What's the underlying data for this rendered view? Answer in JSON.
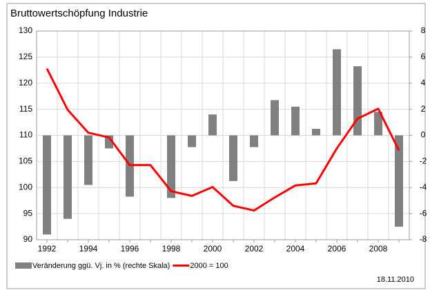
{
  "chart_data": {
    "type": "bar_line",
    "title": "Bruttowertschöpfung Industrie",
    "date": "18.11.2010",
    "categories": [
      "1992",
      null,
      "1994",
      null,
      "1996",
      null,
      "1998",
      null,
      "2000",
      null,
      "2002",
      null,
      "2004",
      null,
      "2006",
      null,
      "2008",
      null
    ],
    "series": [
      {
        "name": "Veränderung ggü. Vj. in % (rechte Skala)",
        "type": "bar",
        "axis": "y2",
        "color": "#808080",
        "values": [
          -7.6,
          -6.4,
          -3.8,
          -1.0,
          -4.7,
          0,
          -4.8,
          -0.9,
          1.6,
          -3.5,
          -0.9,
          2.7,
          2.2,
          0.5,
          6.6,
          5.3,
          1.8,
          -7.0
        ]
      },
      {
        "name": "2000 = 100",
        "type": "line",
        "axis": "y",
        "color": "#ff0000",
        "values": [
          122.8,
          114.9,
          110.5,
          109.6,
          104.3,
          104.3,
          99.3,
          98.4,
          100.1,
          96.5,
          95.6,
          98.1,
          100.4,
          100.8,
          107.5,
          113.2,
          115.1,
          107.1
        ]
      }
    ],
    "ylim": [
      90,
      130
    ],
    "yticks": [
      90,
      95,
      100,
      105,
      110,
      115,
      120,
      125,
      130
    ],
    "y2lim": [
      -8,
      8
    ],
    "y2ticks": [
      -8,
      -6,
      -4,
      -2,
      0,
      2,
      4,
      6,
      8
    ],
    "grid": true
  }
}
